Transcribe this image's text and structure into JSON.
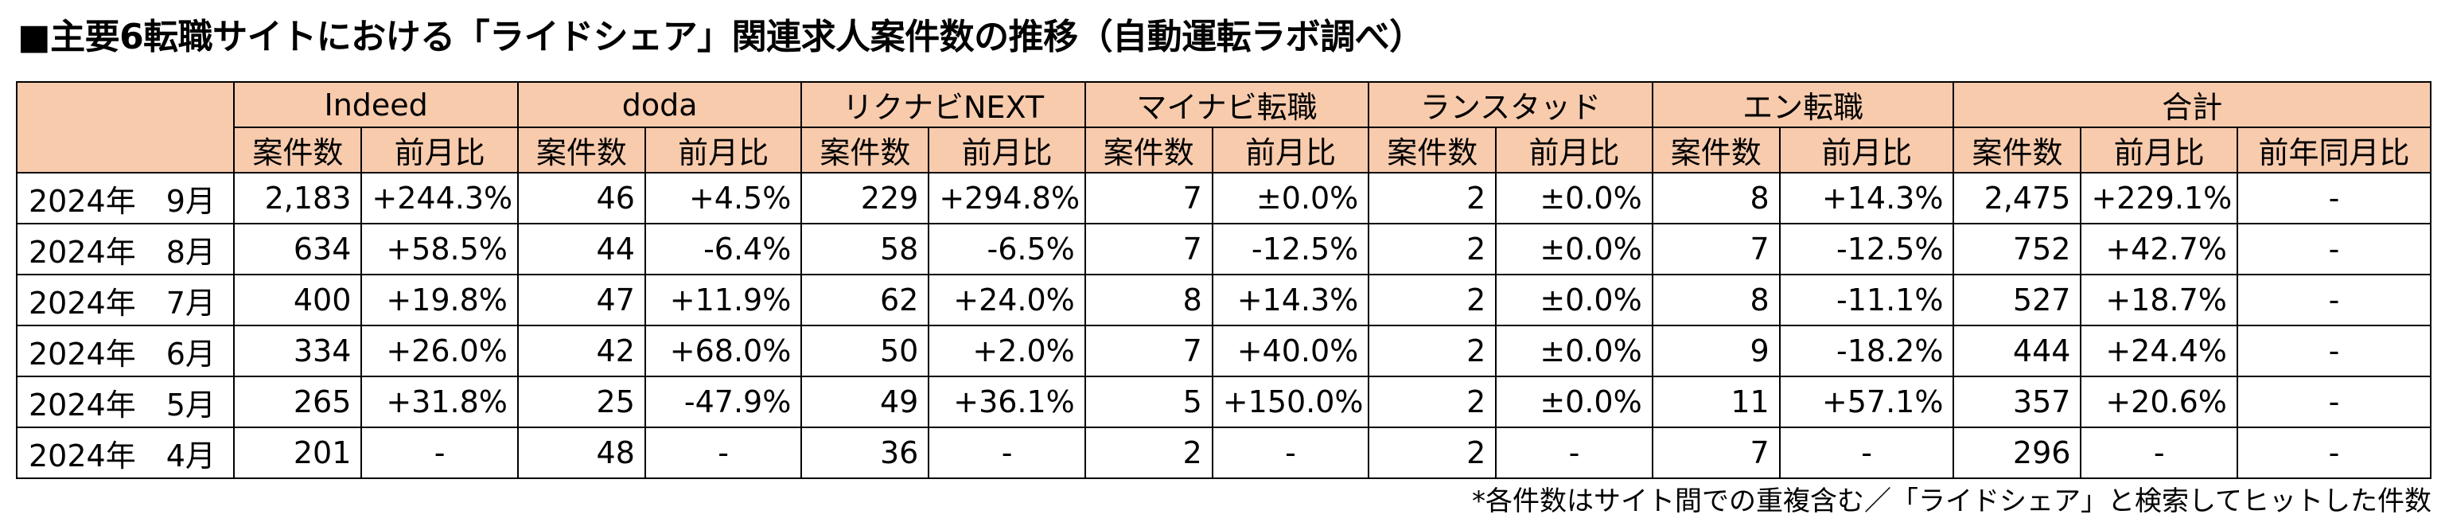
{
  "title": "■主要6転職サイトにおける「ライドシェア」関連求人案件数の推移（自動運転ラボ調べ）",
  "header": {
    "groups": [
      "Indeed",
      "doda",
      "リクナビNEXT",
      "マイナビ転職",
      "ランスタッド",
      "エン転職",
      "合計"
    ],
    "sub_labels": {
      "count": "案件数",
      "mom": "前月比",
      "yoy": "前年同月比"
    }
  },
  "rows": [
    {
      "period": "2024年　9月",
      "cells": [
        "2,183",
        "+244.3%",
        "46",
        "+4.5%",
        "229",
        "+294.8%",
        "7",
        "±0.0%",
        "2",
        "±0.0%",
        "8",
        "+14.3%",
        "2,475",
        "+229.1%",
        "-"
      ]
    },
    {
      "period": "2024年　8月",
      "cells": [
        "634",
        "+58.5%",
        "44",
        "-6.4%",
        "58",
        "-6.5%",
        "7",
        "-12.5%",
        "2",
        "±0.0%",
        "7",
        "-12.5%",
        "752",
        "+42.7%",
        "-"
      ]
    },
    {
      "period": "2024年　7月",
      "cells": [
        "400",
        "+19.8%",
        "47",
        "+11.9%",
        "62",
        "+24.0%",
        "8",
        "+14.3%",
        "2",
        "±0.0%",
        "8",
        "-11.1%",
        "527",
        "+18.7%",
        "-"
      ]
    },
    {
      "period": "2024年　6月",
      "cells": [
        "334",
        "+26.0%",
        "42",
        "+68.0%",
        "50",
        "+2.0%",
        "7",
        "+40.0%",
        "2",
        "±0.0%",
        "9",
        "-18.2%",
        "444",
        "+24.4%",
        "-"
      ]
    },
    {
      "period": "2024年　5月",
      "cells": [
        "265",
        "+31.8%",
        "25",
        "-47.9%",
        "49",
        "+36.1%",
        "5",
        "+150.0%",
        "2",
        "±0.0%",
        "11",
        "+57.1%",
        "357",
        "+20.6%",
        "-"
      ]
    },
    {
      "period": "2024年　4月",
      "cells": [
        "201",
        "-",
        "48",
        "-",
        "36",
        "-",
        "2",
        "-",
        "2",
        "-",
        "7",
        "-",
        "296",
        "-",
        "-"
      ]
    }
  ],
  "footnote": "*各件数はサイト間での重複含む／「ライドシェア」と検索してヒットした件数"
}
